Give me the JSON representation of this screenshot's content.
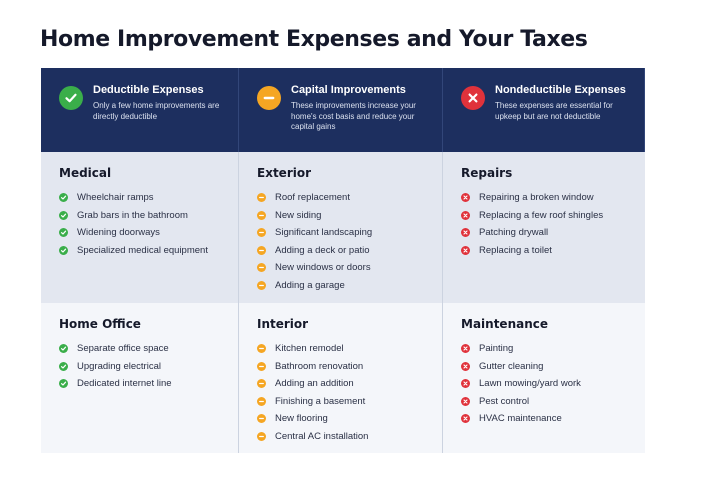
{
  "title": "Home Improvement Expenses and Your Taxes",
  "colors": {
    "header_bg": "#1d2f5f",
    "deductible": "#3aae4a",
    "capital": "#f5a623",
    "nondeductible": "#e0323b"
  },
  "columns": [
    {
      "icon": "check-circle-icon",
      "title": "Deductible Expenses",
      "desc": "Only a few home improvements are directly deductible",
      "groups": [
        {
          "name": "Medical",
          "items": [
            "Wheelchair ramps",
            "Grab bars in the bathroom",
            "Widening doorways",
            "Specialized medical equipment"
          ]
        },
        {
          "name": "Home Office",
          "items": [
            "Separate office space",
            "Upgrading electrical",
            "Dedicated internet line"
          ]
        }
      ]
    },
    {
      "icon": "minus-circle-icon",
      "title": "Capital Improvements",
      "desc": "These improvements increase your home's cost basis and reduce your capital gains",
      "groups": [
        {
          "name": "Exterior",
          "items": [
            "Roof replacement",
            "New siding",
            "Significant landscaping",
            "Adding a deck or patio",
            "New windows or doors",
            "Adding a garage"
          ]
        },
        {
          "name": "Interior",
          "items": [
            "Kitchen remodel",
            "Bathroom renovation",
            "Adding an addition",
            "Finishing a basement",
            "New flooring",
            "Central AC installation"
          ]
        }
      ]
    },
    {
      "icon": "x-circle-icon",
      "title": "Nondeductible Expenses",
      "desc": "These expenses are essential for upkeep but are not deductible",
      "groups": [
        {
          "name": "Repairs",
          "items": [
            "Repairing a broken window",
            "Replacing a few roof shingles",
            "Patching drywall",
            "Replacing a toilet"
          ]
        },
        {
          "name": "Maintenance",
          "items": [
            "Painting",
            "Gutter cleaning",
            "Lawn mowing/yard work",
            "Pest control",
            "HVAC maintenance"
          ]
        }
      ]
    }
  ]
}
